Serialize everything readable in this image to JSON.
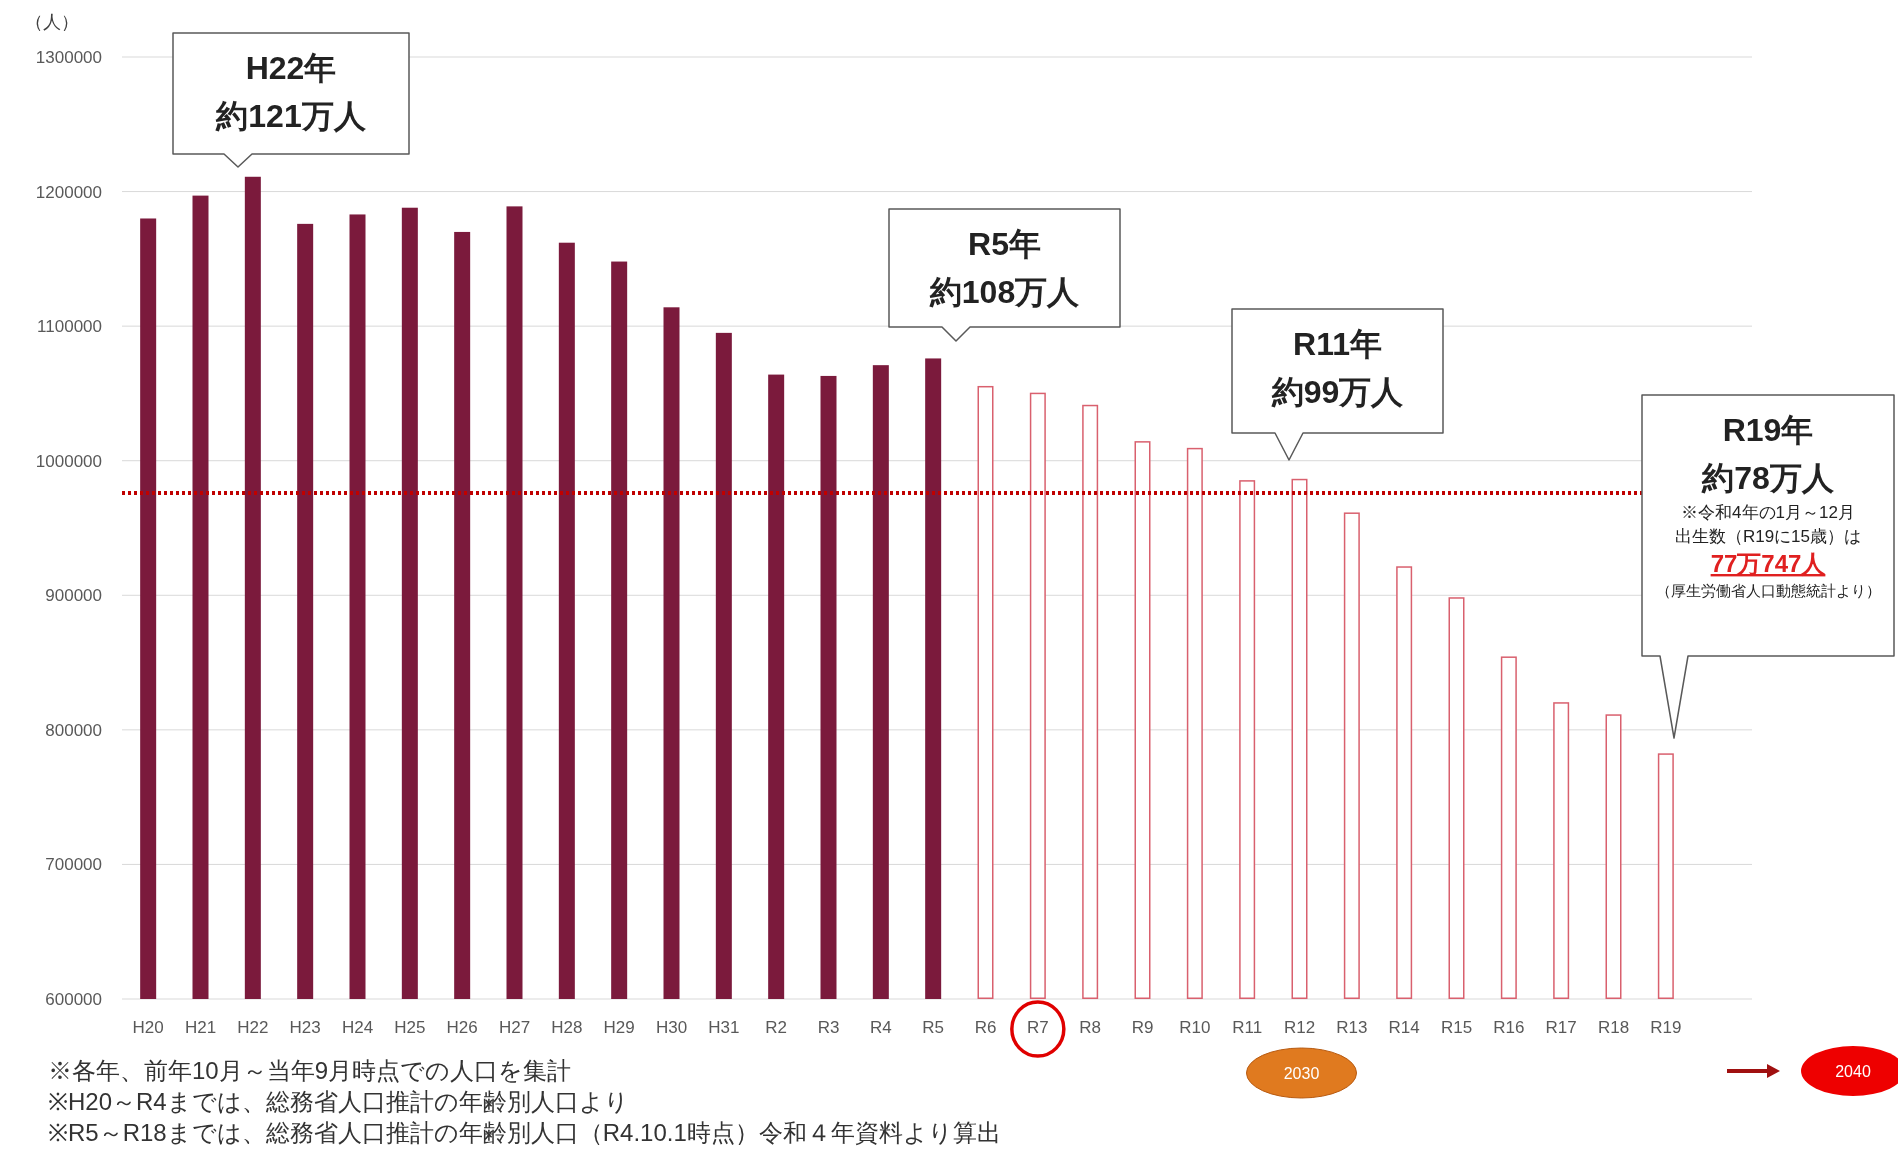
{
  "chart_data": {
    "type": "bar",
    "ylabel": "（人）",
    "categories": [
      "H20",
      "H21",
      "H22",
      "H23",
      "H24",
      "H25",
      "H26",
      "H27",
      "H28",
      "H29",
      "H30",
      "H31",
      "R2",
      "R3",
      "R4",
      "R5",
      "R6",
      "R7",
      "R8",
      "R9",
      "R10",
      "R11",
      "R12",
      "R13",
      "R14",
      "R15",
      "R16",
      "R17",
      "R18",
      "R19"
    ],
    "series": [
      {
        "color": "#7b1a3c",
        "values": [
          1180000,
          1197000,
          1211000,
          1176000,
          1183000,
          1188000,
          1170000,
          1189000,
          1162000,
          1148000,
          1114000,
          1095000,
          1064000,
          1063000,
          1071000,
          1076000,
          null,
          null,
          null,
          null,
          null,
          null,
          null,
          null,
          null,
          null,
          null,
          null,
          null,
          null
        ]
      },
      {
        "color": "#d9606e",
        "values": [
          null,
          null,
          null,
          null,
          null,
          null,
          null,
          null,
          null,
          null,
          null,
          null,
          null,
          null,
          null,
          null,
          1055000,
          1050000,
          1041000,
          1014000,
          1009000,
          985000,
          986000,
          961000,
          921000,
          898000,
          854000,
          820000,
          811000,
          782000
        ]
      }
    ],
    "ylim": [
      600000,
      1300000
    ],
    "yticks": [
      600000,
      700000,
      800000,
      900000,
      1000000,
      1100000,
      1200000,
      1300000
    ],
    "grid": "y",
    "ref_lines": [
      {
        "axis": "y",
        "value": 976000,
        "color": "#c00000",
        "line_style": "dotted"
      }
    ],
    "annotations": [
      "2030",
      "2040",
      "※各年、前年10月～当年9月時点での人口を集計",
      "※H20～R4までは、総務省人口推計の年齢別人口より",
      "※R5～R18までは、総務省人口推計の年齢別人口（R4.10.1時点）令和４年資料より算出",
      "H22年",
      "約121万人",
      "R5年",
      "約108万人",
      "R11年",
      "約99万人",
      "R19年",
      "約78万人",
      "※令和4年の1月～12月",
      "出生数（R19に15歳）は",
      "77万747人",
      "（厚生労働省人口動態統計より）"
    ]
  }
}
